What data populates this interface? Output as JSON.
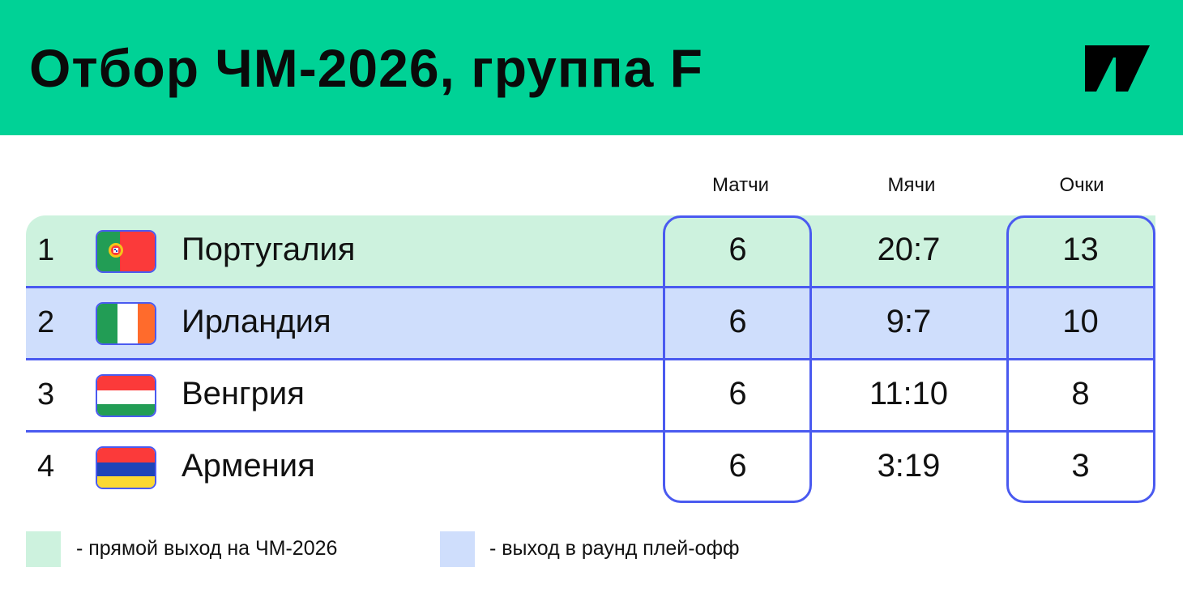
{
  "header": {
    "title": "Отбор ЧМ-2026, группа F",
    "logo": "T-J logo"
  },
  "columns": [
    "Матчи",
    "Мячи",
    "Очки"
  ],
  "rows": [
    {
      "pos": "1",
      "flag": "portugal",
      "name": "Португалия",
      "matches": "6",
      "goals": "20:7",
      "points": "13"
    },
    {
      "pos": "2",
      "flag": "ireland",
      "name": "Ирландия",
      "matches": "6",
      "goals": "9:7",
      "points": "10"
    },
    {
      "pos": "3",
      "flag": "hungary",
      "name": "Венгрия",
      "matches": "6",
      "goals": "11:10",
      "points": "8"
    },
    {
      "pos": "4",
      "flag": "armenia",
      "name": "Армения",
      "matches": "6",
      "goals": "3:19",
      "points": "3"
    }
  ],
  "legend": [
    {
      "label": "-  прямой выход на ЧМ-2026",
      "color": "#cdf2de"
    },
    {
      "label": "-  выход в раунд плей-офф",
      "color": "#cfdefc"
    }
  ],
  "colors": {
    "brand": "#00d296",
    "accent": "#4a5af0"
  }
}
